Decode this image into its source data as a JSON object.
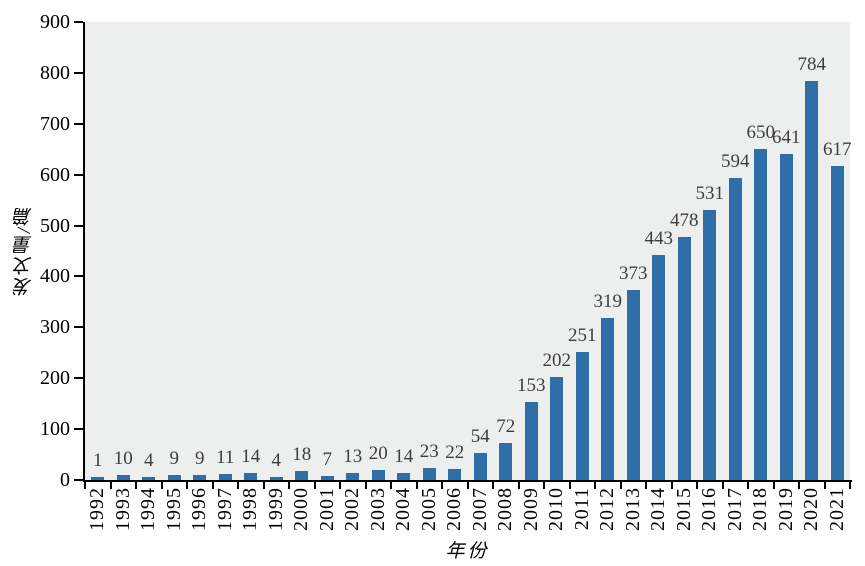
{
  "chart_data": {
    "type": "bar",
    "title": "",
    "xlabel": "年份",
    "ylabel": "发文量/篇",
    "categories": [
      "1992",
      "1993",
      "1994",
      "1995",
      "1996",
      "1997",
      "1998",
      "1999",
      "2000",
      "2001",
      "2002",
      "2003",
      "2004",
      "2005",
      "2006",
      "2007",
      "2008",
      "2009",
      "2010",
      "2011",
      "2012",
      "2013",
      "2014",
      "2015",
      "2016",
      "2017",
      "2018",
      "2019",
      "2020",
      "2021"
    ],
    "values": [
      1,
      10,
      4,
      9,
      9,
      11,
      14,
      4,
      18,
      7,
      13,
      20,
      14,
      23,
      22,
      54,
      72,
      153,
      202,
      251,
      319,
      373,
      443,
      478,
      531,
      594,
      650,
      641,
      784,
      617
    ],
    "ylim": [
      0,
      900
    ],
    "ytick_step": 100,
    "yticks": [
      0,
      100,
      200,
      300,
      400,
      500,
      600,
      700,
      800,
      900
    ],
    "grid": false,
    "legend": "none",
    "data_labels": true,
    "colors": {
      "bar": "#2E6FA8",
      "plot_background": "#EDEEEE",
      "axis": "#000000",
      "data_label": "#3E3E3E",
      "tick_label": "#000000"
    }
  }
}
